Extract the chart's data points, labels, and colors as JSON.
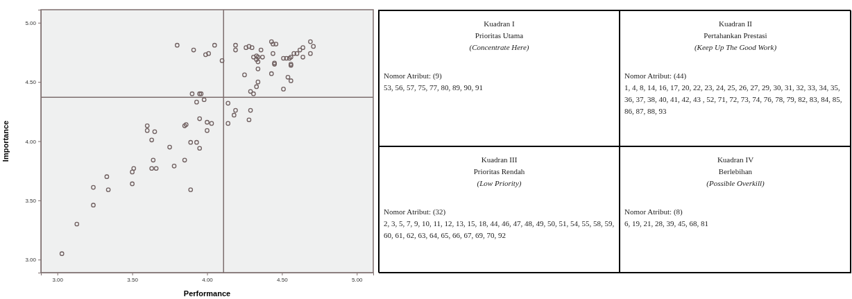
{
  "chart_data": [
    {
      "type": "scatter",
      "xlabel": "Performance",
      "ylabel": "Importance",
      "xlim": [
        2.89,
        5.11
      ],
      "ylim": [
        2.89,
        5.11
      ],
      "xticks": [
        {
          "value": 3,
          "label": "3.00"
        },
        {
          "value": 3.5,
          "label": "3.50"
        },
        {
          "value": 4,
          "label": "4.00"
        },
        {
          "value": 4.5,
          "label": "4.50"
        },
        {
          "value": 5,
          "label": "5.00"
        }
      ],
      "yticks": [
        {
          "value": 3,
          "label": "3.00"
        },
        {
          "value": 3.5,
          "label": "3.50"
        },
        {
          "value": 4,
          "label": "4.00"
        },
        {
          "value": 4.5,
          "label": "4.50"
        },
        {
          "value": 5,
          "label": "5.00"
        }
      ],
      "marker": "circle",
      "ref_lines": [
        {
          "axis": "x",
          "value": 4.11,
          "color": "#7d6e6e"
        },
        {
          "axis": "y",
          "value": 4.37,
          "color": "#7d6e6e"
        }
      ],
      "series": [
        {
          "color": "#6f5f5f",
          "x": [
            3.8,
            3.91,
            3.99,
            4.01,
            4.05,
            4.1,
            4.19,
            4.19,
            4.26,
            4.28,
            4.3,
            4.36,
            4.31,
            4.33,
            4.34,
            4.37,
            4.33,
            4.34,
            4.34,
            4.43,
            4.44,
            4.46,
            4.44,
            4.45,
            4.45,
            4.25,
            4.43,
            4.51,
            4.53,
            4.55,
            4.56,
            4.56,
            4.56,
            4.58,
            4.6,
            4.62,
            4.64,
            4.64,
            4.69,
            4.71,
            4.69,
            4.54,
            4.56,
            4.51,
            4.34,
            4.33,
            4.29,
            4.31,
            4.14,
            4.19,
            4.18,
            4.29,
            4.28,
            4.14,
            3.9,
            3.95,
            3.96,
            3.93,
            3.98,
            3.86,
            3.85,
            3.95,
            4.0,
            4.0,
            4.03,
            3.6,
            3.6,
            3.65,
            3.63,
            3.75,
            3.89,
            3.93,
            3.95,
            3.64,
            3.85,
            3.63,
            3.66,
            3.51,
            3.5,
            3.78,
            3.33,
            3.24,
            3.34,
            3.5,
            3.89,
            3.24,
            3.13,
            3.03
          ],
          "values": [
            4.81,
            4.77,
            4.73,
            4.74,
            4.81,
            4.68,
            4.81,
            4.77,
            4.79,
            4.8,
            4.79,
            4.77,
            4.71,
            4.72,
            4.71,
            4.71,
            4.69,
            4.67,
            4.61,
            4.84,
            4.82,
            4.82,
            4.74,
            4.66,
            4.65,
            4.56,
            4.57,
            4.7,
            4.7,
            4.7,
            4.71,
            4.65,
            4.64,
            4.74,
            4.74,
            4.77,
            4.79,
            4.71,
            4.84,
            4.8,
            4.74,
            4.54,
            4.51,
            4.44,
            4.5,
            4.46,
            4.42,
            4.4,
            4.32,
            4.26,
            4.22,
            4.26,
            4.18,
            4.15,
            4.4,
            4.4,
            4.4,
            4.33,
            4.35,
            4.14,
            4.13,
            4.19,
            4.16,
            4.09,
            4.15,
            4.13,
            4.09,
            4.08,
            4.01,
            3.95,
            3.99,
            3.99,
            3.94,
            3.84,
            3.84,
            3.77,
            3.77,
            3.77,
            3.74,
            3.79,
            3.7,
            3.61,
            3.59,
            3.64,
            3.59,
            3.46,
            3.3,
            3.05
          ]
        }
      ]
    },
    {
      "type": "other",
      "annotations": [
        "Kuadran I",
        "Prioritas Utama",
        "(Concentrate Here)",
        "Nomor Atribut: (9)",
        "53, 56, 57, 75, 77, 80, 89, 90, 91",
        "Kuadran II",
        "Pertahankan Prestasi",
        "(Keep Up The Good Work)",
        "Nomor Atribut: (44)",
        "1, 4, 8, 14, 16, 17, 20, 22, 23, 24, 25, 26, 27, 29, 30, 31, 32, 33, 34, 35, 36, 37, 38, 40, 41, 42, 43 , 52, 71, 72, 73, 74, 76, 78, 79, 82, 83, 84, 85, 86, 87, 88, 93",
        "Kuadran III",
        "Prioritas Rendah",
        "(Low Priority)",
        "Nomor Atribut: (32)",
        "2, 3, 5, 7, 9, 10, 11, 12, 13, 15, 18, 44, 46, 47, 48, 49, 50, 51, 54, 55, 58, 59, 60, 61, 62, 63, 64, 65, 66, 67, 69, 70, 92",
        "Kuadran IV",
        "Berlebihan",
        "(Possible Overkill)",
        "Nomor Atribut: (8)",
        "6, 19, 21, 28, 39, 45, 68, 81"
      ]
    }
  ]
}
